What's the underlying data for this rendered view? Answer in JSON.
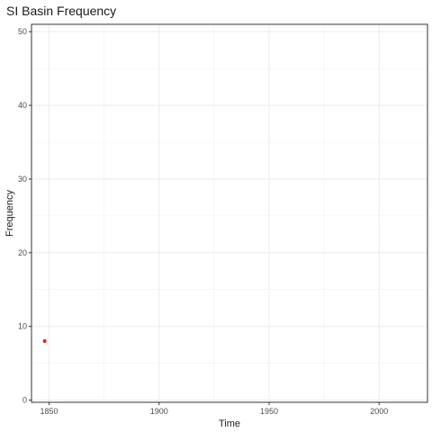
{
  "chart_data": {
    "type": "scatter",
    "title": "SI Basin Frequency",
    "xlabel": "Time",
    "ylabel": "Frequency",
    "xlim": [
      1842,
      2022
    ],
    "ylim": [
      -0.3,
      51
    ],
    "x_ticks": [
      1850,
      1900,
      1950,
      2000
    ],
    "y_ticks": [
      0,
      10,
      20,
      30,
      40,
      50
    ],
    "x_tick_labels": [
      "1850",
      "1900",
      "1950",
      "2000"
    ],
    "y_tick_labels": [
      "0",
      "10",
      "20",
      "30",
      "40",
      "50"
    ],
    "grid": true,
    "legend": "none",
    "series": [
      {
        "color": "#e41a1c",
        "points": [
          {
            "x": 1848,
            "y": 8
          }
        ]
      }
    ]
  }
}
